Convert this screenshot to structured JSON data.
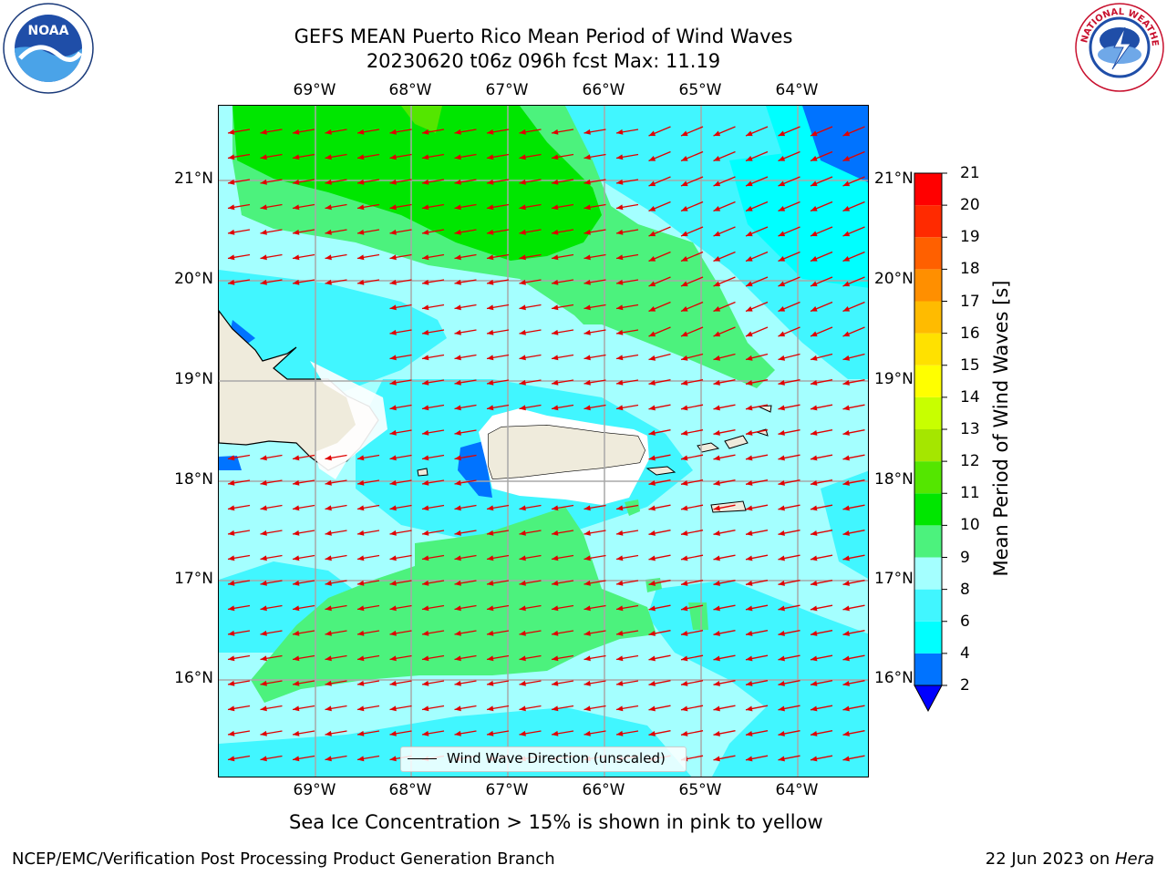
{
  "header": {
    "title_line1": "GEFS MEAN Puerto Rico Mean Period of Wind Waves",
    "title_line2": "20230620 t06z 096h fcst   Max: 11.19"
  },
  "logos": {
    "noaa": {
      "icon": "noaa-logo",
      "label": "NOAA",
      "ring_text": "NATIONAL OCEANIC AND ATMOSPHERIC ADMINISTRATION · U.S. DEPARTMENT OF COMMERCE"
    },
    "nws": {
      "icon": "nws-logo",
      "ring_text": "NATIONAL WEATHER SERVICE"
    }
  },
  "map": {
    "lon_labels": [
      "69°W",
      "68°W",
      "67°W",
      "66°W",
      "65°W",
      "64°W"
    ],
    "lat_labels": [
      "21°N",
      "20°N",
      "19°N",
      "18°N",
      "17°N",
      "16°N"
    ],
    "legend_label": "Wind Wave Direction (unscaled)",
    "wind_direction": "east-northeasterly (arrows point west-southwest)"
  },
  "colorbar": {
    "title": "Mean Period of Wind Waves [s]",
    "ticks": [
      "2",
      "4",
      "6",
      "8",
      "9",
      "10",
      "11",
      "12",
      "13",
      "14",
      "15",
      "16",
      "17",
      "18",
      "19",
      "20",
      "21"
    ],
    "colors": [
      "#0000ff",
      "#0073ff",
      "#00ffff",
      "#41f6ff",
      "#a4ffff",
      "#4cf27d",
      "#00e600",
      "#54e600",
      "#a5e600",
      "#c8ff00",
      "#ffff00",
      "#ffe100",
      "#ffbb00",
      "#ff8f00",
      "#ff6000",
      "#ff2a00",
      "#ff0000"
    ]
  },
  "note": "Sea Ice Concentration > 15% is shown in pink to yellow",
  "footer": {
    "left": "NCEP/EMC/Verification Post Processing Product Generation Branch",
    "right_prefix": "22 Jun 2023 on ",
    "right_host": "Hera"
  }
}
